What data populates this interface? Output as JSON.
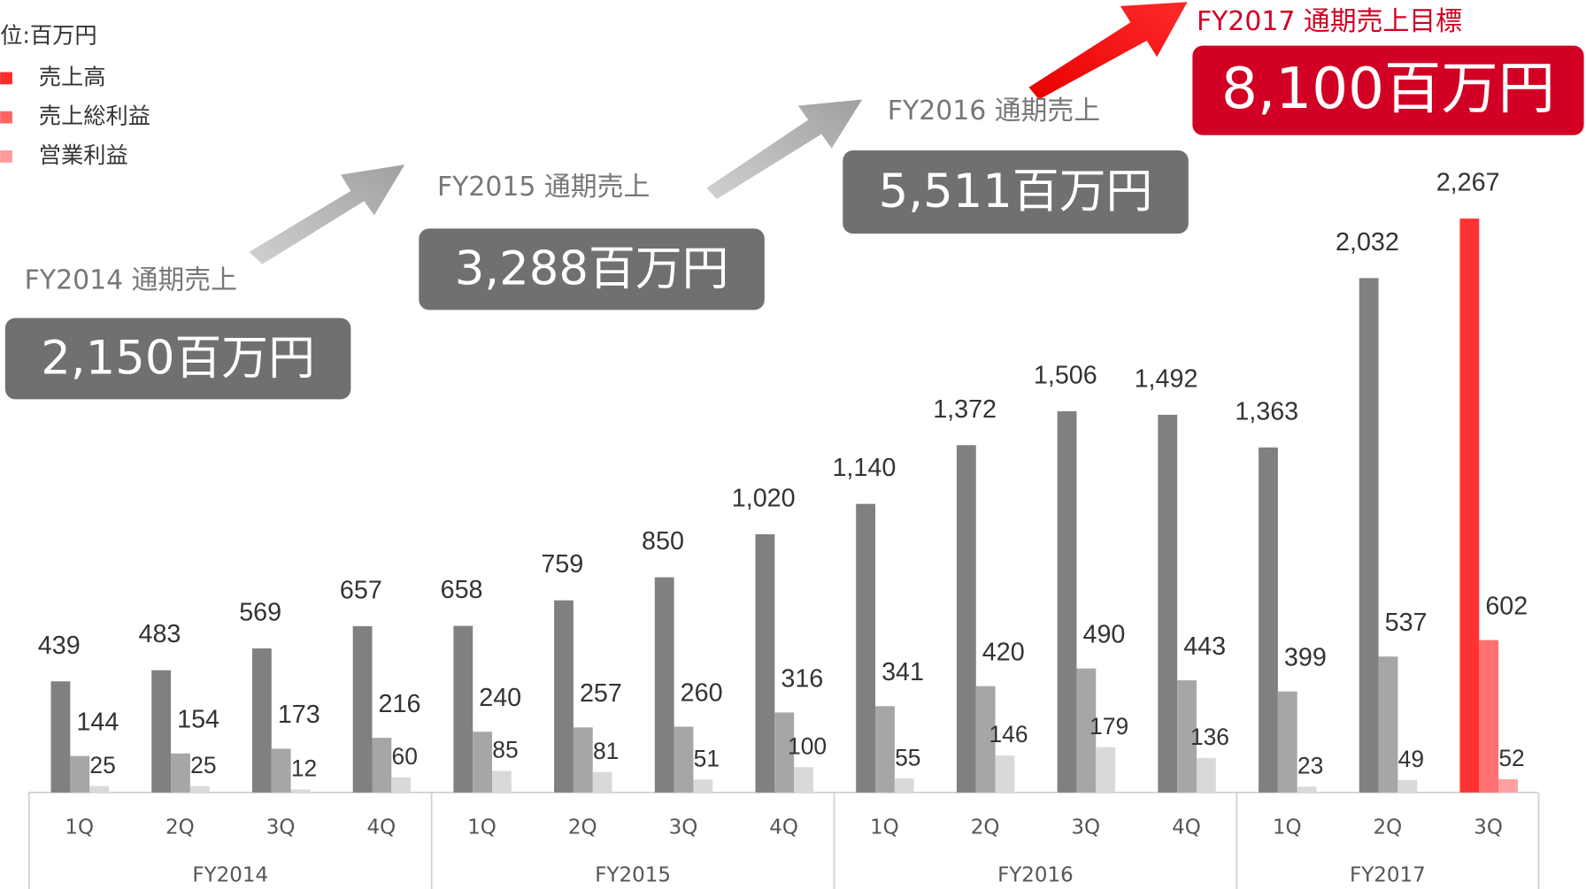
{
  "chart_data": {
    "type": "bar",
    "legend_title": "位:百万円",
    "categories": [
      "1Q",
      "2Q",
      "3Q",
      "4Q",
      "1Q",
      "2Q",
      "3Q",
      "4Q",
      "1Q",
      "2Q",
      "3Q",
      "4Q",
      "1Q",
      "2Q",
      "3Q"
    ],
    "groups": [
      {
        "label": "FY2014",
        "size": 4
      },
      {
        "label": "FY2015",
        "size": 4
      },
      {
        "label": "FY2016",
        "size": 4
      },
      {
        "label": "FY2017",
        "size": 3
      }
    ],
    "ylim": [
      0,
      2400
    ],
    "series": [
      {
        "name": "売上高",
        "color": "#ff2a2a",
        "colors": [
          "#808080",
          "#808080",
          "#808080",
          "#808080",
          "#808080",
          "#808080",
          "#808080",
          "#808080",
          "#808080",
          "#808080",
          "#808080",
          "#808080",
          "#808080",
          "#808080",
          "#ff3333"
        ],
        "values": [
          439,
          483,
          569,
          657,
          658,
          759,
          850,
          1020,
          1140,
          1372,
          1506,
          1492,
          1363,
          2032,
          2267
        ],
        "value_labels": [
          "439",
          "483",
          "569",
          "657",
          "658",
          "759",
          "850",
          "1,020",
          "1,140",
          "1,372",
          "1,506",
          "1,492",
          "1,363",
          "2,032",
          "2,267"
        ]
      },
      {
        "name": "売上総利益",
        "color": "#ff6464",
        "colors": [
          "#a6a6a6",
          "#a6a6a6",
          "#a6a6a6",
          "#a6a6a6",
          "#a6a6a6",
          "#a6a6a6",
          "#a6a6a6",
          "#a6a6a6",
          "#a6a6a6",
          "#a6a6a6",
          "#a6a6a6",
          "#a6a6a6",
          "#a6a6a6",
          "#a6a6a6",
          "#ff7070"
        ],
        "values": [
          144,
          154,
          173,
          216,
          240,
          257,
          260,
          316,
          341,
          420,
          490,
          443,
          399,
          537,
          602
        ]
      },
      {
        "name": "営業利益",
        "color": "#ff9a9a",
        "colors": [
          "#d9d9d9",
          "#d9d9d9",
          "#d9d9d9",
          "#d9d9d9",
          "#d9d9d9",
          "#d9d9d9",
          "#d9d9d9",
          "#d9d9d9",
          "#d9d9d9",
          "#d9d9d9",
          "#d9d9d9",
          "#d9d9d9",
          "#d9d9d9",
          "#d9d9d9",
          "#ffa0a0"
        ],
        "values": [
          25,
          25,
          12,
          60,
          85,
          81,
          51,
          100,
          55,
          146,
          179,
          136,
          23,
          49,
          52
        ]
      }
    ],
    "annotations": [
      {
        "label": "FY2014 通期売上",
        "value": "2,150百万円"
      },
      {
        "label": "FY2015 通期売上",
        "value": "3,288百万円"
      },
      {
        "label": "FY2016 通期売上",
        "value": "5,511百万円"
      },
      {
        "label": "FY2017 通期売上目標",
        "value": "8,100百万円"
      }
    ]
  }
}
